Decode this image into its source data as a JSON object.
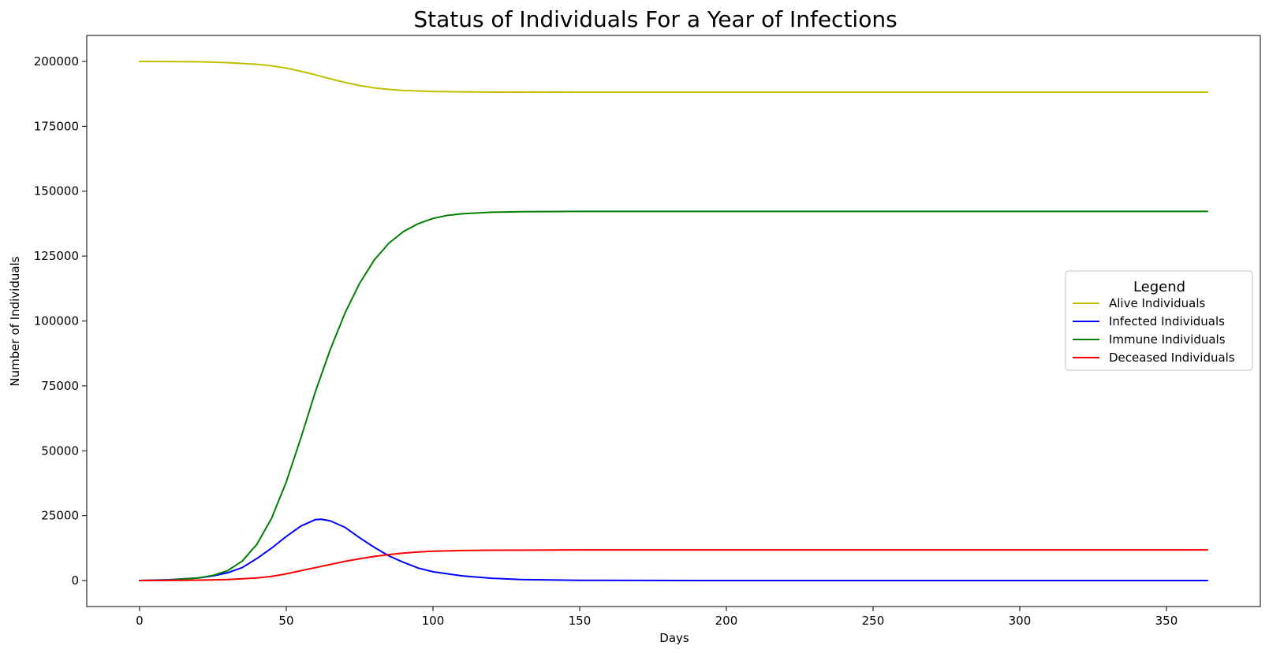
{
  "chart_data": {
    "type": "line",
    "title": "Status of Individuals For a Year of Infections",
    "xlabel": "Days",
    "ylabel": "Number of Individuals",
    "xlim": [
      -18,
      382
    ],
    "ylim": [
      -10000,
      210000
    ],
    "xticks": [
      0,
      50,
      100,
      150,
      200,
      250,
      300,
      350
    ],
    "yticks": [
      0,
      25000,
      50000,
      75000,
      100000,
      125000,
      150000,
      175000,
      200000
    ],
    "grid": false,
    "legend": {
      "title": "Legend",
      "placement": "center-right"
    },
    "series": [
      {
        "name": "Alive Individuals",
        "color": "#bfbf00",
        "points": [
          [
            0,
            200000
          ],
          [
            10,
            199950
          ],
          [
            20,
            199850
          ],
          [
            30,
            199550
          ],
          [
            40,
            198900
          ],
          [
            45,
            198300
          ],
          [
            50,
            197400
          ],
          [
            55,
            196200
          ],
          [
            60,
            194800
          ],
          [
            65,
            193300
          ],
          [
            70,
            191900
          ],
          [
            75,
            190700
          ],
          [
            80,
            189800
          ],
          [
            85,
            189200
          ],
          [
            90,
            188800
          ],
          [
            100,
            188400
          ],
          [
            110,
            188250
          ],
          [
            120,
            188200
          ],
          [
            150,
            188150
          ],
          [
            200,
            188150
          ],
          [
            300,
            188150
          ],
          [
            364,
            188150
          ]
        ]
      },
      {
        "name": "Infected Individuals",
        "color": "#0000ff",
        "points": [
          [
            0,
            0
          ],
          [
            10,
            300
          ],
          [
            20,
            1000
          ],
          [
            25,
            1800
          ],
          [
            30,
            3000
          ],
          [
            35,
            5000
          ],
          [
            40,
            8500
          ],
          [
            45,
            12500
          ],
          [
            50,
            17000
          ],
          [
            55,
            21000
          ],
          [
            60,
            23500
          ],
          [
            62,
            23600
          ],
          [
            65,
            23000
          ],
          [
            70,
            20500
          ],
          [
            75,
            16500
          ],
          [
            80,
            12800
          ],
          [
            85,
            9500
          ],
          [
            90,
            7000
          ],
          [
            95,
            4800
          ],
          [
            100,
            3400
          ],
          [
            110,
            1800
          ],
          [
            120,
            900
          ],
          [
            130,
            400
          ],
          [
            150,
            100
          ],
          [
            200,
            0
          ],
          [
            364,
            0
          ]
        ]
      },
      {
        "name": "Immune Individuals",
        "color": "#008000",
        "points": [
          [
            0,
            0
          ],
          [
            10,
            200
          ],
          [
            20,
            1000
          ],
          [
            25,
            2000
          ],
          [
            30,
            3800
          ],
          [
            35,
            7500
          ],
          [
            40,
            14000
          ],
          [
            45,
            24000
          ],
          [
            50,
            38000
          ],
          [
            55,
            55000
          ],
          [
            60,
            73000
          ],
          [
            65,
            89000
          ],
          [
            70,
            103000
          ],
          [
            75,
            114500
          ],
          [
            80,
            123500
          ],
          [
            85,
            130000
          ],
          [
            90,
            134500
          ],
          [
            95,
            137500
          ],
          [
            100,
            139500
          ],
          [
            105,
            140700
          ],
          [
            110,
            141300
          ],
          [
            120,
            141900
          ],
          [
            130,
            142100
          ],
          [
            150,
            142200
          ],
          [
            200,
            142200
          ],
          [
            300,
            142200
          ],
          [
            364,
            142200
          ]
        ]
      },
      {
        "name": "Deceased Individuals",
        "color": "#ff0000",
        "points": [
          [
            0,
            0
          ],
          [
            10,
            50
          ],
          [
            20,
            150
          ],
          [
            30,
            400
          ],
          [
            40,
            1000
          ],
          [
            45,
            1600
          ],
          [
            50,
            2600
          ],
          [
            55,
            3800
          ],
          [
            60,
            5000
          ],
          [
            65,
            6200
          ],
          [
            70,
            7400
          ],
          [
            75,
            8400
          ],
          [
            80,
            9300
          ],
          [
            85,
            10000
          ],
          [
            90,
            10600
          ],
          [
            95,
            11000
          ],
          [
            100,
            11300
          ],
          [
            110,
            11600
          ],
          [
            120,
            11700
          ],
          [
            150,
            11800
          ],
          [
            200,
            11800
          ],
          [
            300,
            11800
          ],
          [
            364,
            11800
          ]
        ]
      }
    ]
  }
}
